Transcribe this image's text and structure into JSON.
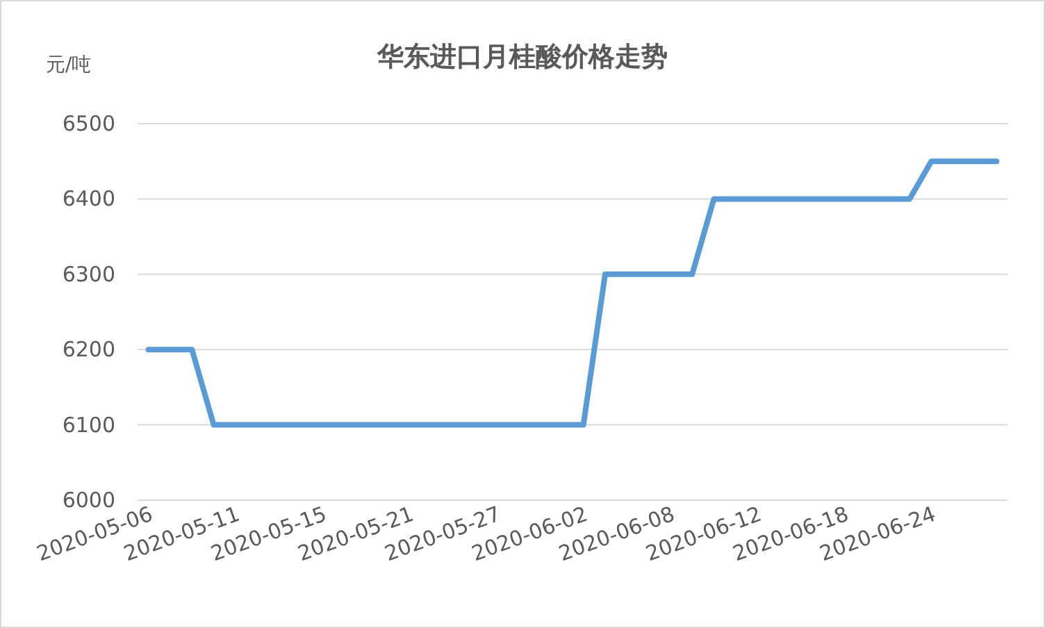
{
  "chart_data": {
    "type": "line",
    "title": "华东进口月桂酸价格走势",
    "ylabel": "元/吨",
    "categories": [
      "2020-05-06",
      null,
      null,
      null,
      "2020-05-11",
      null,
      null,
      null,
      "2020-05-15",
      null,
      null,
      null,
      "2020-05-21",
      null,
      null,
      null,
      "2020-05-27",
      null,
      null,
      null,
      "2020-06-02",
      null,
      null,
      null,
      "2020-06-08",
      null,
      null,
      null,
      "2020-06-12",
      null,
      null,
      null,
      "2020-06-18",
      null,
      null,
      null,
      "2020-06-24",
      null,
      null,
      null
    ],
    "values": [
      6200,
      6200,
      6200,
      6100,
      6100,
      6100,
      6100,
      6100,
      6100,
      6100,
      6100,
      6100,
      6100,
      6100,
      6100,
      6100,
      6100,
      6100,
      6100,
      6100,
      6100,
      6300,
      6300,
      6300,
      6300,
      6300,
      6400,
      6400,
      6400,
      6400,
      6400,
      6400,
      6400,
      6400,
      6400,
      6400,
      6450,
      6450,
      6450,
      6450
    ],
    "color": "#5b9bd5",
    "ylim": [
      6000,
      6500
    ],
    "yticks": [
      6000,
      6100,
      6200,
      6300,
      6400,
      6500
    ],
    "grid": "y"
  }
}
